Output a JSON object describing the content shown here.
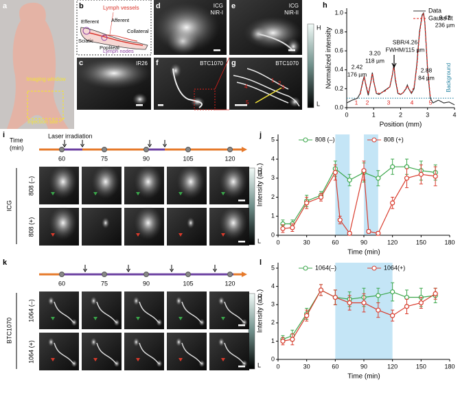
{
  "figure": {
    "panel_letters": [
      "a",
      "b",
      "c",
      "d",
      "e",
      "f",
      "g",
      "h",
      "i",
      "j",
      "k",
      "l"
    ],
    "a": {
      "imaging_window": "Imaging window",
      "injection_site": "Injection site"
    },
    "b": {
      "lymph_vessels": "Lymph vessels",
      "efferent": "Efferent",
      "afferent": "Afferent",
      "collateral": "Collateral",
      "sciatic": "Sciatic",
      "popliteal": "Popliteal",
      "lymph_nodes": "Lymph nodes"
    },
    "c": [
      "IR26"
    ],
    "d": [
      "ICG",
      "NIR-I"
    ],
    "e": [
      "ICG",
      "NIR-II"
    ],
    "f": [
      "BTC1070"
    ],
    "g": {
      "label": "BTC1070",
      "markers": [
        "1",
        "2",
        "3",
        "4",
        "5"
      ]
    },
    "colorbar": {
      "high": "H",
      "low": "L"
    },
    "i": {
      "time_label": [
        "Time",
        "(min)"
      ],
      "laser": "Laser irradiation",
      "times": [
        60,
        75,
        90,
        105,
        120
      ],
      "group": "ICG",
      "rows": [
        "808 (–)",
        "808 (+)"
      ]
    },
    "k": {
      "times": [
        60,
        75,
        90,
        105,
        120
      ],
      "group": "BTC1070",
      "rows": [
        "1064 (–)",
        "1064 (+)"
      ]
    }
  },
  "chart_data": [
    {
      "type": "line",
      "xlabel": "Position (mm)",
      "ylabel": "Normalized intensity",
      "xlim": [
        0,
        4
      ],
      "xticks": [
        0,
        1,
        2,
        3,
        4
      ],
      "ylim": [
        0,
        1.05
      ],
      "yticks": [
        {
          "value": 0,
          "label": "0.0"
        },
        {
          "value": 0.2,
          "label": "0.2"
        },
        {
          "value": 0.4,
          "label": "0.4"
        },
        {
          "value": 0.6,
          "label": "0.6"
        },
        {
          "value": 0.8,
          "label": "0.8"
        },
        {
          "value": 1.0,
          "label": "1.0"
        }
      ],
      "legend": "upper right",
      "series": [
        {
          "name": "Data",
          "color": "#333333",
          "line_style": "solid",
          "x": [
            0,
            0.2,
            0.4,
            0.5,
            0.6,
            0.65,
            0.7,
            0.8,
            0.9,
            0.95,
            1.0,
            1.1,
            1.2,
            1.4,
            1.6,
            1.7,
            1.75,
            1.8,
            1.9,
            2.0,
            2.1,
            2.2,
            2.25,
            2.3,
            2.4,
            2.5,
            2.6,
            2.7,
            2.8,
            2.85,
            2.9,
            3.0,
            3.1,
            3.2,
            3.4,
            3.6,
            3.8,
            4.0
          ],
          "values": [
            0.05,
            0.08,
            0.1,
            0.15,
            0.28,
            0.33,
            0.25,
            0.13,
            0.28,
            0.37,
            0.28,
            0.15,
            0.14,
            0.18,
            0.22,
            0.35,
            0.46,
            0.3,
            0.15,
            0.14,
            0.16,
            0.2,
            0.24,
            0.2,
            0.15,
            0.2,
            0.45,
            0.8,
            0.98,
            1.0,
            0.9,
            0.4,
            0.1,
            0.05,
            0.08,
            0.05,
            0.06,
            0.03
          ]
        },
        {
          "name": "Gauss fit",
          "color": "#e0201b",
          "line_style": "dashed",
          "x": [
            0,
            0.2,
            0.4,
            0.5,
            0.6,
            0.65,
            0.7,
            0.8,
            0.9,
            0.95,
            1.0,
            1.1,
            1.2,
            1.4,
            1.6,
            1.7,
            1.75,
            1.8,
            1.9,
            2.0,
            2.1,
            2.2,
            2.25,
            2.3,
            2.4,
            2.5,
            2.6,
            2.7,
            2.8,
            2.85,
            2.9,
            3.0,
            3.1,
            3.2,
            3.4,
            3.6,
            3.8,
            4.0
          ],
          "values": [
            null,
            null,
            null,
            0.14,
            0.27,
            0.32,
            0.26,
            0.15,
            0.27,
            0.36,
            0.27,
            0.16,
            0.15,
            0.17,
            0.22,
            0.36,
            0.45,
            0.32,
            0.16,
            0.14,
            0.16,
            0.21,
            0.23,
            0.2,
            0.16,
            0.22,
            0.42,
            0.78,
            0.97,
            0.99,
            0.9,
            0.42,
            0.12,
            null,
            null,
            null,
            null,
            null
          ]
        }
      ],
      "reference_line": 0.1,
      "reference_color": "#1f7f9f",
      "reference_label": "Background",
      "annotations": [
        [
          "2.42",
          "176 µm"
        ],
        [
          "3.20",
          "118 µm"
        ],
        [
          "SBR/4.26",
          "FWHM/115 µm"
        ],
        [
          "2.88",
          "84 µm"
        ],
        [
          "9.42",
          "236 µm"
        ]
      ],
      "peak_labels": [
        "1",
        "2",
        "3",
        "4",
        "5"
      ]
    },
    {
      "type": "line",
      "xlabel": "Time (min)",
      "ylabel": "Intensity (a.u.)",
      "xlim": [
        0,
        180
      ],
      "xticks": [
        0,
        30,
        60,
        90,
        120,
        150,
        180
      ],
      "ylim": [
        0,
        5.3
      ],
      "yticks": [
        0,
        1,
        2,
        3,
        4,
        5
      ],
      "legend": "top",
      "shaded_x": [
        [
          60,
          75
        ],
        [
          90,
          105
        ]
      ],
      "shaded_color": "#c4e5f6",
      "series": [
        {
          "name": "808 (–)",
          "color": "#3aa64a",
          "x": [
            5,
            15,
            30,
            45,
            60,
            75,
            90,
            105,
            120,
            135,
            150,
            165
          ],
          "values": [
            0.6,
            0.6,
            1.8,
            2.1,
            3.5,
            2.9,
            3.3,
            3.0,
            3.6,
            3.6,
            3.4,
            3.3
          ],
          "errors": [
            0.2,
            0.2,
            0.3,
            0.2,
            0.4,
            0.3,
            0.5,
            0.4,
            0.4,
            0.4,
            0.5,
            0.4
          ]
        },
        {
          "name": "808 (+)",
          "color": "#d93a2b",
          "x": [
            5,
            15,
            30,
            45,
            60,
            65,
            75,
            90,
            95,
            105,
            120,
            135,
            150,
            165
          ],
          "values": [
            0.35,
            0.4,
            1.7,
            2.0,
            3.3,
            0.8,
            0.1,
            3.4,
            0.2,
            0.1,
            1.7,
            3.0,
            3.2,
            3.1
          ],
          "errors": [
            0.2,
            0.2,
            0.3,
            0.2,
            0.4,
            0.2,
            0.1,
            0.5,
            0.1,
            0.1,
            0.3,
            0.5,
            0.5,
            0.5
          ]
        }
      ]
    },
    {
      "type": "line",
      "xlabel": "Time (min)",
      "ylabel": "Intensity (a.u.)",
      "xlim": [
        0,
        180
      ],
      "xticks": [
        0,
        30,
        60,
        90,
        120,
        150,
        180
      ],
      "ylim": [
        0,
        5.3
      ],
      "yticks": [
        0,
        1,
        2,
        3,
        4,
        5
      ],
      "legend": "top",
      "shaded_x": [
        [
          60,
          120
        ]
      ],
      "shaded_color": "#c4e5f6",
      "series": [
        {
          "name": "1064(–)",
          "color": "#3aa64a",
          "x": [
            5,
            15,
            30,
            45,
            60,
            75,
            90,
            105,
            120,
            135,
            150,
            165
          ],
          "values": [
            1.1,
            1.3,
            2.5,
            3.8,
            3.4,
            3.3,
            3.4,
            3.5,
            3.7,
            3.4,
            3.4,
            3.5
          ],
          "errors": [
            0.2,
            0.3,
            0.3,
            0.3,
            0.4,
            0.4,
            0.5,
            0.4,
            0.5,
            0.4,
            0.5,
            0.4
          ]
        },
        {
          "name": "1064(+)",
          "color": "#d93a2b",
          "x": [
            5,
            15,
            30,
            45,
            60,
            75,
            90,
            105,
            120,
            135,
            150,
            165
          ],
          "values": [
            1.0,
            1.1,
            2.4,
            3.8,
            3.4,
            3.1,
            3.1,
            2.7,
            2.4,
            2.9,
            3.1,
            3.6
          ],
          "errors": [
            0.2,
            0.3,
            0.3,
            0.3,
            0.4,
            0.4,
            0.5,
            0.4,
            0.3,
            0.4,
            0.3,
            0.3
          ]
        }
      ]
    }
  ]
}
